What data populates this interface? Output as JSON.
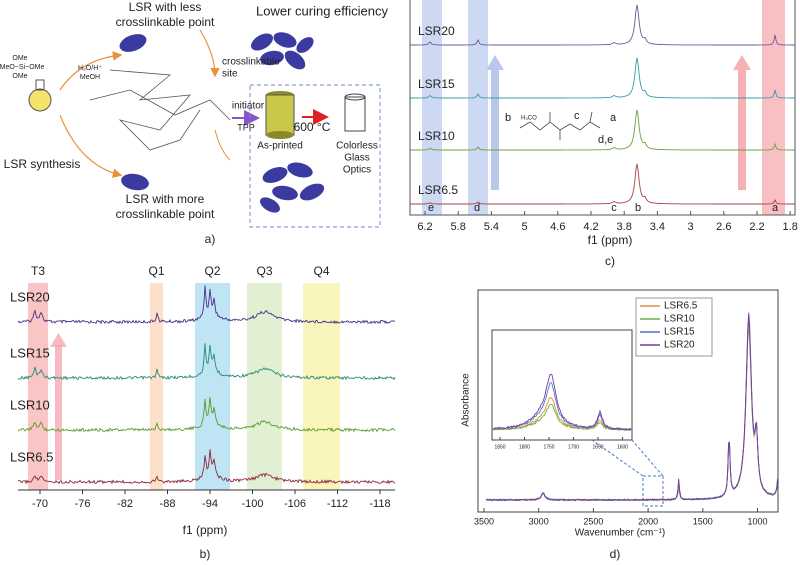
{
  "panel_a": {
    "caption": "a)",
    "synthesis": "LSR synthesis",
    "less": [
      "LSR with less",
      "crosslinkable point"
    ],
    "more": [
      "LSR with more",
      "crosslinkable point"
    ],
    "lower": "Lower curing efficiency",
    "site": [
      "crosslinkable",
      "site"
    ],
    "initiator": "initiator",
    "tpp": "TPP",
    "temperature": "600 °C",
    "printed": "As-printed",
    "optics": [
      "Colorless",
      "Glass",
      "Optics"
    ],
    "reagents": [
      "OMe",
      "MeO−Si−OMe",
      "OMe",
      "H₂O/H⁺",
      "MeOH"
    ]
  },
  "panel_b": {
    "caption": "b)",
    "xlabel": "f1 (ppm)",
    "xticks": [
      -70,
      -76,
      -82,
      -88,
      -94,
      -100,
      -106,
      -112,
      -118
    ],
    "regions": [
      "T3",
      "Q1",
      "Q2",
      "Q3",
      "Q4"
    ],
    "samples": [
      "LSR20",
      "LSR15",
      "LSR10",
      "LSR6.5"
    ]
  },
  "panel_c": {
    "caption": "c)",
    "xlabel": "f1 (ppm)",
    "xticks": [
      6.2,
      5.8,
      5.4,
      5.0,
      4.6,
      4.2,
      3.8,
      3.4,
      3.0,
      2.6,
      2.2,
      1.8
    ],
    "samples": [
      "LSR20",
      "LSR15",
      "LSR10",
      "LSR6.5"
    ],
    "peaks": [
      "e",
      "d",
      "c",
      "b",
      "a"
    ],
    "structure": [
      "b",
      "H₃CO",
      "c",
      "a",
      "d,e"
    ]
  },
  "panel_d": {
    "caption": "d)",
    "xlabel": "Wavenumber (cm⁻¹)",
    "ylabel": "Absorbance",
    "xticks": [
      3500,
      3000,
      2500,
      2000,
      1500,
      1000
    ],
    "legend": [
      "LSR6.5",
      "LSR10",
      "LSR15",
      "LSR20"
    ],
    "inset_xticks": [
      1850,
      1800,
      1750,
      1700,
      1650,
      1600
    ]
  }
}
